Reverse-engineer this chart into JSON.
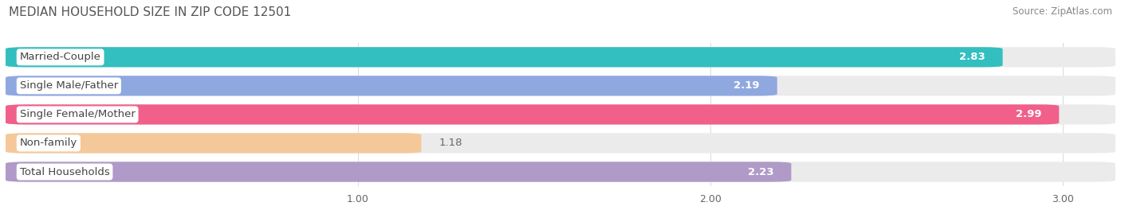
{
  "title": "MEDIAN HOUSEHOLD SIZE IN ZIP CODE 12501",
  "source": "Source: ZipAtlas.com",
  "categories": [
    "Married-Couple",
    "Single Male/Father",
    "Single Female/Mother",
    "Non-family",
    "Total Households"
  ],
  "values": [
    2.83,
    2.19,
    2.99,
    1.18,
    2.23
  ],
  "bar_colors": [
    "#33bfbf",
    "#8fa8e0",
    "#f0608a",
    "#f5c89a",
    "#b09ac8"
  ],
  "bar_bg_colors": [
    "#ebebeb",
    "#ebebeb",
    "#ebebeb",
    "#ebebeb",
    "#ebebeb"
  ],
  "xlim": [
    0.0,
    3.15
  ],
  "data_min": 0.0,
  "data_max": 3.0,
  "xticks": [
    1.0,
    2.0,
    3.0
  ],
  "xtick_labels": [
    "1.00",
    "2.00",
    "3.00"
  ],
  "title_fontsize": 11,
  "source_fontsize": 8.5,
  "label_fontsize": 9.5,
  "value_fontsize": 9.5,
  "bar_height": 0.7,
  "bar_gap": 0.3,
  "bg_color": "#ffffff",
  "title_color": "#555555",
  "source_color": "#888888",
  "label_color": "#444444",
  "value_color_inside": "#ffffff",
  "value_color_outside": "#666666",
  "grid_color": "#dddddd"
}
